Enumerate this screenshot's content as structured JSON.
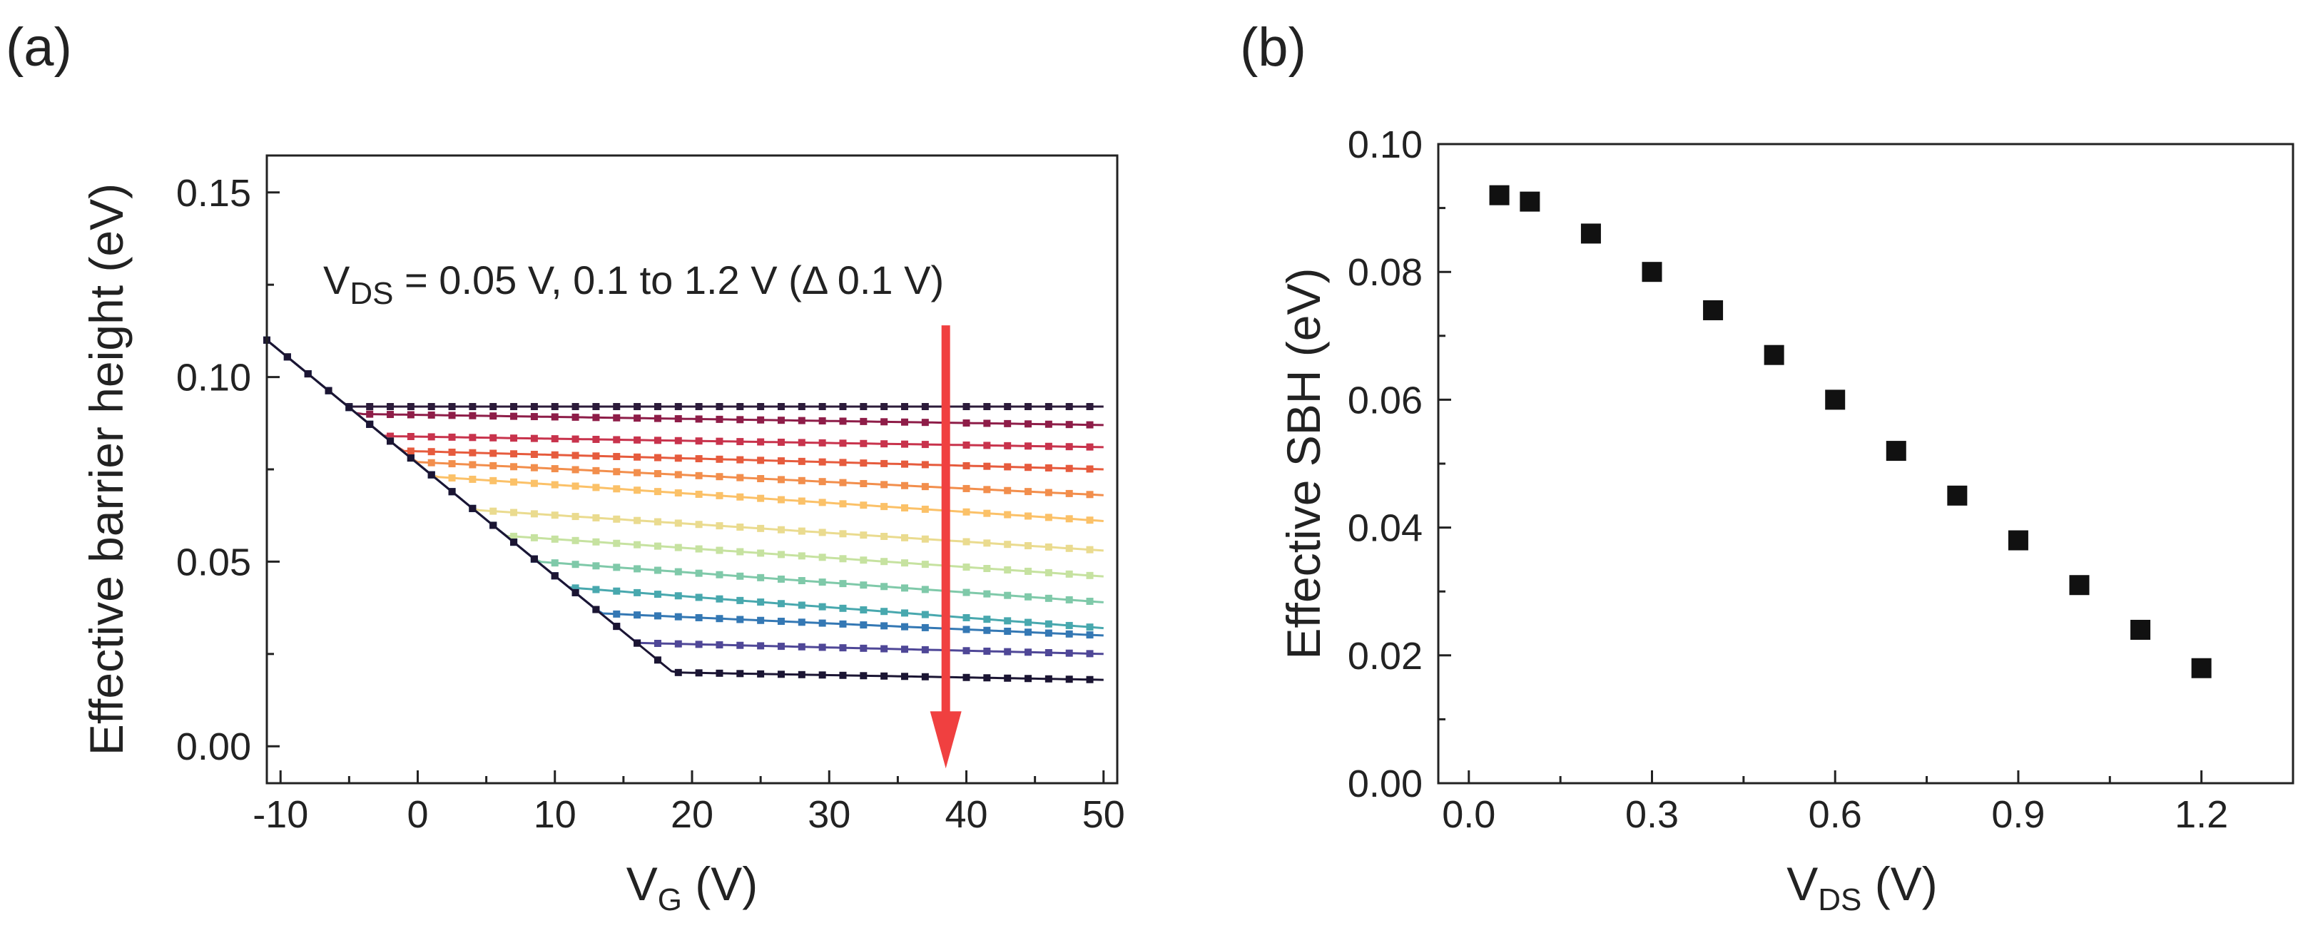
{
  "figure": {
    "panels": [
      {
        "label": "(a)"
      },
      {
        "label": "(b)"
      }
    ]
  },
  "chart_data": [
    {
      "panel": "(a)",
      "type": "line",
      "title": "",
      "xlabel": {
        "main": "V",
        "sub": "G",
        "unit": " (V)"
      },
      "ylabel": "Effective barrier height (eV)",
      "xlim": [
        -11,
        51
      ],
      "ylim": [
        -0.01,
        0.16
      ],
      "xticks": [
        -10,
        0,
        10,
        20,
        30,
        40,
        50
      ],
      "xtick_labels": [
        "-10",
        "0",
        "10",
        "20",
        "30",
        "40",
        "50"
      ],
      "yticks": [
        0.0,
        0.05,
        0.1,
        0.15
      ],
      "ytick_labels": [
        "0.00",
        "0.05",
        "0.10",
        "0.15"
      ],
      "annotation": {
        "pre": "V",
        "sub": "DS",
        "post": " = 0.05 V, 0.1 to 1.2 V (Δ 0.1 V)"
      },
      "arrow": {
        "x": 38.5,
        "y_start": 0.114,
        "y_end": -0.006,
        "color": "#f04040"
      },
      "series_model": "All curves follow a common linear decrease from 0.11 eV at -11 V (slope -0.00304 eV/V) until reaching their own plateau value, then stay flat.",
      "x_sample": [
        -11,
        -9,
        -7,
        -5,
        -3,
        -1,
        1,
        3,
        5,
        7,
        9,
        11,
        13,
        15,
        17,
        19,
        21,
        23,
        25,
        27,
        29,
        31,
        33,
        35,
        37,
        39,
        41,
        43,
        45,
        47,
        49,
        50
      ],
      "series": [
        {
          "name": "0.05 V",
          "color": "#2c1b3a",
          "plateau": 0.092,
          "end": 0.092
        },
        {
          "name": "0.1 V",
          "color": "#8e1d48",
          "plateau": 0.09,
          "end": 0.087
        },
        {
          "name": "0.2 V",
          "color": "#c8334c",
          "plateau": 0.084,
          "end": 0.081
        },
        {
          "name": "0.3 V",
          "color": "#e65b3d",
          "plateau": 0.08,
          "end": 0.075
        },
        {
          "name": "0.4 V",
          "color": "#f28e4c",
          "plateau": 0.077,
          "end": 0.068
        },
        {
          "name": "0.5 V",
          "color": "#fbc168",
          "plateau": 0.073,
          "end": 0.061
        },
        {
          "name": "0.6 V",
          "color": "#eadb8f",
          "plateau": 0.064,
          "end": 0.053
        },
        {
          "name": "0.7 V",
          "color": "#c6e2a0",
          "plateau": 0.057,
          "end": 0.046
        },
        {
          "name": "0.8 V",
          "color": "#7fc9a9",
          "plateau": 0.05,
          "end": 0.039
        },
        {
          "name": "0.9 V",
          "color": "#48a8ae",
          "plateau": 0.043,
          "end": 0.032
        },
        {
          "name": "1.0 V",
          "color": "#3478b4",
          "plateau": 0.036,
          "end": 0.03
        },
        {
          "name": "1.1 V",
          "color": "#4f4797",
          "plateau": 0.028,
          "end": 0.025
        },
        {
          "name": "1.2 V",
          "color": "#1b1533",
          "plateau": 0.02,
          "end": 0.018
        }
      ]
    },
    {
      "panel": "(b)",
      "type": "scatter",
      "title": "",
      "xlabel": {
        "main": "V",
        "sub": "DS",
        "unit": " (V)"
      },
      "ylabel": "Effective SBH (eV)",
      "xlim": [
        -0.05,
        1.35
      ],
      "ylim": [
        0.0,
        0.1
      ],
      "xticks": [
        0.0,
        0.3,
        0.6,
        0.9,
        1.2
      ],
      "xtick_labels": [
        "0.0",
        "0.3",
        "0.6",
        "0.9",
        "1.2"
      ],
      "yticks": [
        0.0,
        0.02,
        0.04,
        0.06,
        0.08,
        0.1
      ],
      "ytick_labels": [
        "0.00",
        "0.02",
        "0.04",
        "0.06",
        "0.08",
        "0.10"
      ],
      "x": [
        0.05,
        0.1,
        0.2,
        0.3,
        0.4,
        0.5,
        0.6,
        0.7,
        0.8,
        0.9,
        1.0,
        1.1,
        1.2
      ],
      "y": [
        0.092,
        0.091,
        0.086,
        0.08,
        0.074,
        0.067,
        0.06,
        0.052,
        0.045,
        0.038,
        0.031,
        0.024,
        0.018
      ]
    }
  ]
}
